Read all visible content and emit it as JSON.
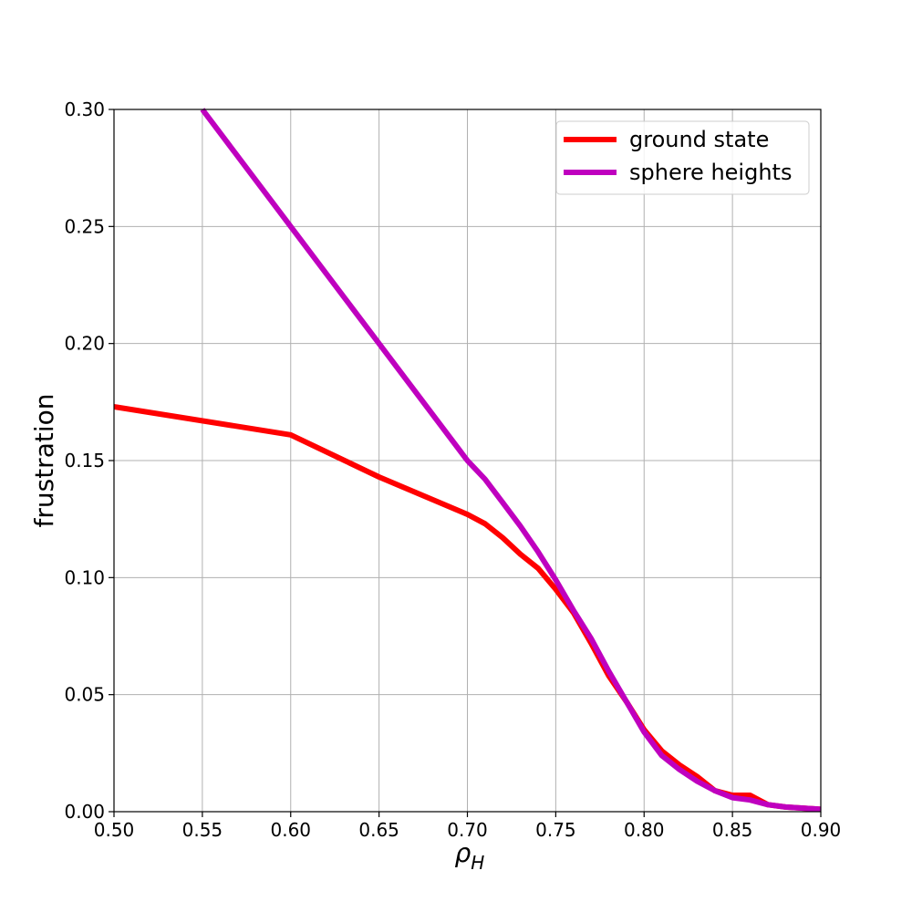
{
  "chart_data": {
    "type": "line",
    "title": "",
    "xlabel": "ρ",
    "xlabel_sub": "H",
    "ylabel": "frustration",
    "xlim": [
      0.5,
      0.9
    ],
    "ylim": [
      0.0,
      0.3
    ],
    "grid": true,
    "legend_position": "top-right",
    "xticks": [
      "0.50",
      "0.55",
      "0.60",
      "0.65",
      "0.70",
      "0.75",
      "0.80",
      "0.85",
      "0.90"
    ],
    "yticks": [
      "0.00",
      "0.05",
      "0.10",
      "0.15",
      "0.20",
      "0.25",
      "0.30"
    ],
    "series": [
      {
        "name": "ground state",
        "color": "#ff0000",
        "x": [
          0.5,
          0.6,
          0.65,
          0.7,
          0.71,
          0.72,
          0.73,
          0.74,
          0.75,
          0.76,
          0.77,
          0.78,
          0.79,
          0.8,
          0.81,
          0.82,
          0.83,
          0.84,
          0.85,
          0.86,
          0.87,
          0.88,
          0.89,
          0.9
        ],
        "y": [
          0.173,
          0.161,
          0.143,
          0.127,
          0.123,
          0.117,
          0.11,
          0.104,
          0.095,
          0.085,
          0.072,
          0.058,
          0.047,
          0.035,
          0.026,
          0.02,
          0.015,
          0.009,
          0.007,
          0.007,
          0.003,
          0.002,
          0.0015,
          0.001
        ]
      },
      {
        "name": "sphere heights",
        "color": "#bf00bf",
        "x": [
          0.55,
          0.6,
          0.65,
          0.7,
          0.71,
          0.72,
          0.73,
          0.74,
          0.75,
          0.76,
          0.77,
          0.78,
          0.79,
          0.8,
          0.81,
          0.82,
          0.83,
          0.84,
          0.85,
          0.86,
          0.87,
          0.88,
          0.89,
          0.9
        ],
        "y": [
          0.3,
          0.25,
          0.2,
          0.15,
          0.142,
          0.132,
          0.122,
          0.111,
          0.099,
          0.086,
          0.074,
          0.06,
          0.047,
          0.034,
          0.024,
          0.018,
          0.013,
          0.009,
          0.006,
          0.005,
          0.003,
          0.002,
          0.0015,
          0.001
        ]
      }
    ]
  }
}
